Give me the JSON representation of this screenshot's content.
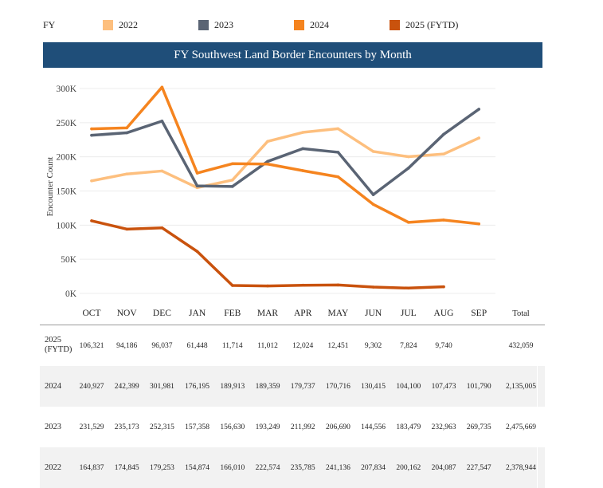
{
  "legend": {
    "label": "FY",
    "items": [
      {
        "name": "2022",
        "color": "#fdbf7e"
      },
      {
        "name": "2023",
        "color": "#5a6474"
      },
      {
        "name": "2024",
        "color": "#f5841f"
      },
      {
        "name": "2025 (FYTD)",
        "color": "#c9520d"
      }
    ]
  },
  "chart_data": {
    "type": "line",
    "title": "FY Southwest Land Border Encounters by Month",
    "xlabel": "",
    "ylabel": "Encounter Count",
    "ylim": [
      0,
      300000
    ],
    "yticks": [
      "0K",
      "50K",
      "100K",
      "150K",
      "200K",
      "250K",
      "300K"
    ],
    "ytick_values": [
      0,
      50000,
      100000,
      150000,
      200000,
      250000,
      300000
    ],
    "categories": [
      "OCT",
      "NOV",
      "DEC",
      "JAN",
      "FEB",
      "MAR",
      "APR",
      "MAY",
      "JUN",
      "JUL",
      "AUG",
      "SEP"
    ],
    "series": [
      {
        "name": "2022",
        "color": "#fdbf7e",
        "values": [
          164837,
          174845,
          179253,
          154874,
          166010,
          222574,
          235785,
          241136,
          207834,
          200162,
          204087,
          227547
        ]
      },
      {
        "name": "2023",
        "color": "#5a6474",
        "values": [
          231529,
          235173,
          252315,
          157358,
          156630,
          193249,
          211992,
          206690,
          144556,
          183479,
          232963,
          269735
        ]
      },
      {
        "name": "2024",
        "color": "#f5841f",
        "values": [
          240927,
          242399,
          301981,
          176195,
          189913,
          189359,
          179737,
          170716,
          130415,
          104100,
          107473,
          101790
        ]
      },
      {
        "name": "2025 (FYTD)",
        "color": "#c9520d",
        "values": [
          106321,
          94186,
          96037,
          61448,
          11714,
          11012,
          12024,
          12451,
          9302,
          7824,
          9740,
          null
        ]
      }
    ]
  },
  "table": {
    "total_header": "Total",
    "rows": [
      {
        "label": "2025 (FYTD)",
        "values": [
          "106,321",
          "94,186",
          "96,037",
          "61,448",
          "11,714",
          "11,012",
          "12,024",
          "12,451",
          "9,302",
          "7,824",
          "9,740",
          ""
        ],
        "total": "432,059"
      },
      {
        "label": "2024",
        "values": [
          "240,927",
          "242,399",
          "301,981",
          "176,195",
          "189,913",
          "189,359",
          "179,737",
          "170,716",
          "130,415",
          "104,100",
          "107,473",
          "101,790"
        ],
        "total": "2,135,005"
      },
      {
        "label": "2023",
        "values": [
          "231,529",
          "235,173",
          "252,315",
          "157,358",
          "156,630",
          "193,249",
          "211,992",
          "206,690",
          "144,556",
          "183,479",
          "232,963",
          "269,735"
        ],
        "total": "2,475,669"
      },
      {
        "label": "2022",
        "values": [
          "164,837",
          "174,845",
          "179,253",
          "154,874",
          "166,010",
          "222,574",
          "235,785",
          "241,136",
          "207,834",
          "200,162",
          "204,087",
          "227,547"
        ],
        "total": "2,378,944"
      }
    ]
  }
}
